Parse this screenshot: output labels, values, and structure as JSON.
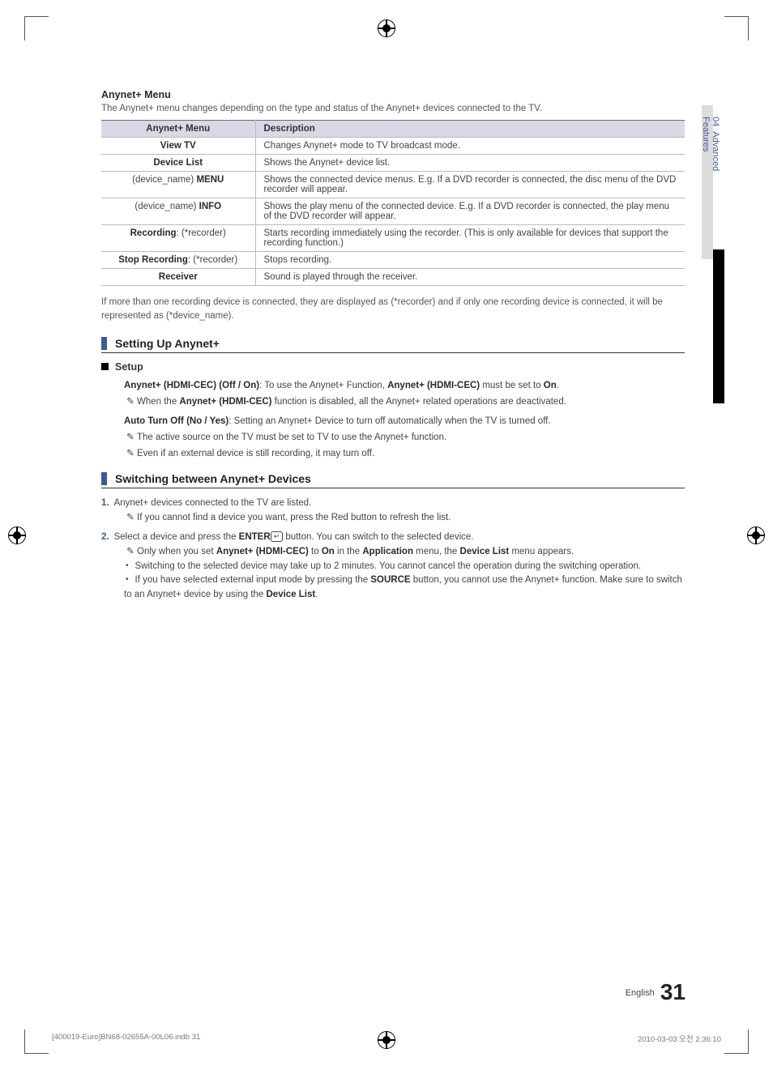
{
  "sideTab": {
    "chapter": "04",
    "label": "Advanced Features"
  },
  "header": {
    "title": "Anynet+ Menu",
    "intro": "The Anynet+ menu changes depending on the type and status of the Anynet+ devices connected to the TV."
  },
  "table": {
    "head": {
      "c1": "Anynet+ Menu",
      "c2": "Description"
    },
    "rows": [
      {
        "c1_html": "<span class='b'>View TV</span>",
        "c2": "Changes Anynet+ mode to TV broadcast mode."
      },
      {
        "c1_html": "<span class='b'>Device List</span>",
        "c2": "Shows the Anynet+ device list."
      },
      {
        "c1_html": "(device_name) <span class='b'>MENU</span>",
        "c2": "Shows the connected device menus. E.g. If a DVD recorder is connected, the disc menu of the DVD recorder will appear."
      },
      {
        "c1_html": "(device_name) <span class='b'>INFO</span>",
        "c2": "Shows the play menu of the connected device. E.g. If a DVD recorder is connected, the play menu of the DVD recorder will appear."
      },
      {
        "c1_html": "<span class='b'>Recording</span>: (*recorder)",
        "c2": "Starts recording immediately using the recorder. (This is only available for devices that support the recording function.)"
      },
      {
        "c1_html": "<span class='b'>Stop Recording</span>: (*recorder)",
        "c2": "Stops recording."
      },
      {
        "c1_html": "<span class='b'>Receiver</span>",
        "c2": "Sound is played through the receiver."
      }
    ]
  },
  "tableNote": "If more than one recording device is connected, they are displayed as (*recorder) and if only one recording device is connected, it will be represented as (*device_name).",
  "section1": {
    "title": "Setting Up Anynet+",
    "setup": "Setup",
    "p1_html": "<span class='b'>Anynet+ (HDMI-CEC) (Off / On)</span>: To use the Anynet+ Function, <span class='b'>Anynet+ (HDMI-CEC)</span> must be set to <span class='b'>On</span>.",
    "n1_html": "When the <span class='b'>Anynet+ (HDMI-CEC)</span> function is disabled, all the Anynet+ related operations are deactivated.",
    "p2_html": "<span class='b'>Auto Turn Off (No / Yes)</span>: Setting an Anynet+ Device to turn off automatically when the TV is turned off.",
    "n2": "The active source on the TV must be set to TV to use the Anynet+ function.",
    "n3": "Even if an external device is still recording, it may turn off."
  },
  "section2": {
    "title": "Switching between Anynet+ Devices",
    "s1": "Anynet+ devices connected to the TV are listed.",
    "s1n": "If you cannot find a device you want, press the Red button to refresh the list.",
    "s2_html": "Select a device and press the <span class='b'>ENTER</span><span class='enter-icon'>↵</span> button. You can switch to the selected device.",
    "s2n_html": "Only when you set <span class='b'>Anynet+ (HDMI-CEC)</span> to <span class='b'>On</span> in the <span class='b'>Application</span> menu, the <span class='b'>Device List</span> menu appears.",
    "b1": "Switching to the selected device may take up to 2 minutes. You cannot cancel the operation during the switching operation.",
    "b2_html": "If you have selected external input mode by pressing the <span class='b'>SOURCE</span> button, you cannot use the Anynet+ function. Make sure to switch to an Anynet+ device by using the <span class='b'>Device List</span>."
  },
  "footer": {
    "lang": "English",
    "page": "31"
  },
  "slug": {
    "left": "[400019-Euro]BN68-02655A-00L06.indb   31",
    "right": "2010-03-03   오전 2:36:10"
  }
}
